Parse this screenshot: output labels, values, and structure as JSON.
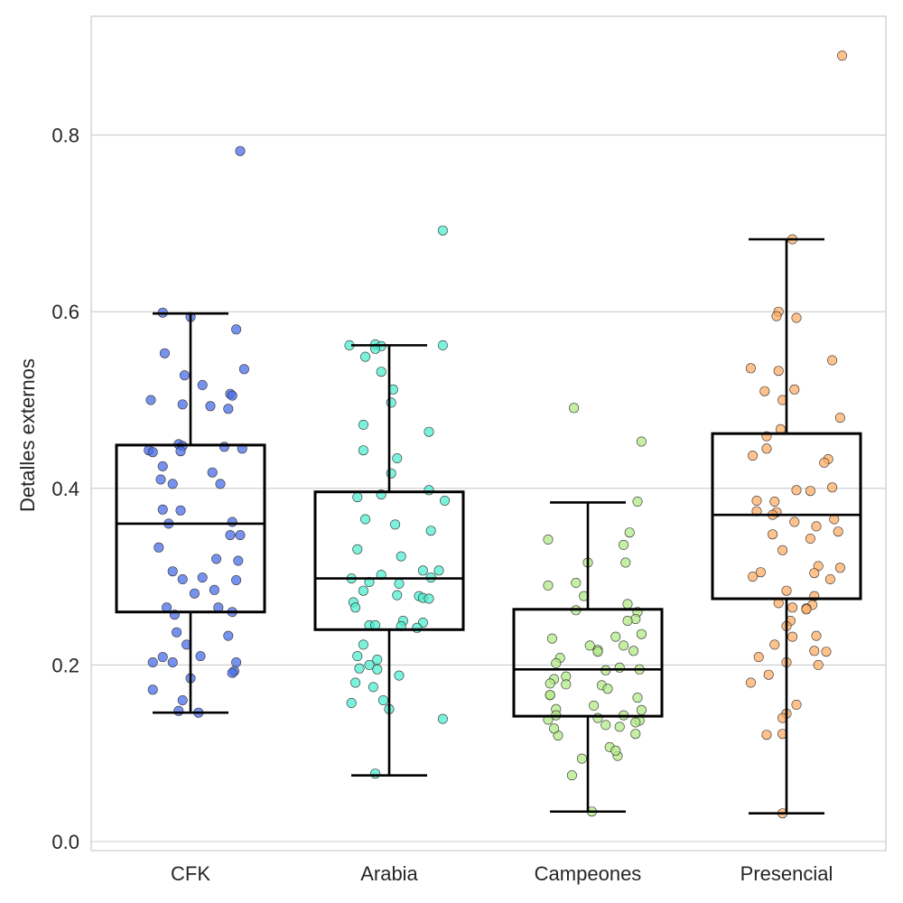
{
  "chart_data": {
    "type": "box",
    "overlay": "jittered-scatter",
    "title": "",
    "xlabel": "",
    "ylabel": "Detalles externos",
    "ylim": [
      -0.012,
      0.935
    ],
    "yticks": [
      0.0,
      0.2,
      0.4,
      0.6,
      0.8
    ],
    "ytick_labels": [
      "0.0",
      "0.2",
      "0.4",
      "0.6",
      "0.8"
    ],
    "grid": "horizontal",
    "categories": [
      "CFK",
      "Arabia",
      "Campeones",
      "Presencial"
    ],
    "colors": [
      "#4a6ee8",
      "#4dedd0",
      "#b2ea86",
      "#ffae66"
    ],
    "boxes": [
      {
        "category": "CFK",
        "whisker_low": 0.146,
        "q1": 0.26,
        "median": 0.36,
        "q3": 0.449,
        "whisker_high": 0.598
      },
      {
        "category": "Arabia",
        "whisker_low": 0.075,
        "q1": 0.24,
        "median": 0.298,
        "q3": 0.396,
        "whisker_high": 0.562
      },
      {
        "category": "Campeones",
        "whisker_low": 0.034,
        "q1": 0.142,
        "median": 0.195,
        "q3": 0.263,
        "whisker_high": 0.384
      },
      {
        "category": "Presencial",
        "whisker_low": 0.032,
        "q1": 0.275,
        "median": 0.37,
        "q3": 0.462,
        "whisker_high": 0.682
      }
    ],
    "points": [
      {
        "category": "CFK",
        "jitter": [
          0.25,
          -0.14,
          0.0,
          0.23,
          -0.13,
          0.27,
          -0.03,
          0.06,
          0.2,
          0.21,
          -0.2,
          -0.04,
          0.1,
          0.19,
          -0.06,
          -0.04,
          0.17,
          0.26,
          -0.21,
          -0.05,
          -0.19,
          -0.14,
          0.11,
          -0.15,
          -0.09,
          0.15,
          -0.14,
          -0.05,
          -0.11,
          0.21,
          0.2,
          0.25,
          -0.16,
          0.13,
          0.24,
          -0.09,
          0.06,
          -0.04,
          0.23,
          0.12,
          0.02,
          0.14,
          -0.12,
          0.21,
          -0.08,
          -0.07,
          0.19,
          -0.02,
          0.05,
          -0.14,
          0.23,
          -0.09,
          0.22,
          0.21,
          0.0,
          -0.19,
          -0.04,
          -0.06,
          0.04,
          -0.19
        ],
        "values": [
          0.782,
          0.599,
          0.594,
          0.58,
          0.553,
          0.535,
          0.528,
          0.517,
          0.507,
          0.505,
          0.5,
          0.495,
          0.493,
          0.49,
          0.45,
          0.448,
          0.447,
          0.445,
          0.443,
          0.442,
          0.441,
          0.425,
          0.418,
          0.41,
          0.405,
          0.405,
          0.376,
          0.375,
          0.36,
          0.362,
          0.347,
          0.347,
          0.333,
          0.32,
          0.318,
          0.306,
          0.299,
          0.297,
          0.296,
          0.285,
          0.281,
          0.265,
          0.265,
          0.26,
          0.257,
          0.237,
          0.233,
          0.223,
          0.21,
          0.209,
          0.203,
          0.203,
          0.193,
          0.191,
          0.185,
          0.172,
          0.16,
          0.148,
          0.146,
          0.203
        ]
      },
      {
        "category": "Arabia",
        "jitter": [
          0.27,
          -0.07,
          -0.04,
          -0.2,
          0.27,
          -0.07,
          -0.12,
          -0.04,
          0.02,
          0.01,
          -0.13,
          0.2,
          -0.13,
          0.04,
          0.01,
          0.2,
          -0.04,
          -0.16,
          0.28,
          -0.12,
          0.03,
          0.21,
          0.06,
          -0.16,
          0.25,
          0.17,
          0.21,
          -0.19,
          -0.04,
          -0.1,
          0.05,
          -0.13,
          0.04,
          0.15,
          0.17,
          0.2,
          -0.18,
          -0.17,
          0.07,
          0.17,
          -0.1,
          0.14,
          0.06,
          -0.07,
          -0.13,
          -0.16,
          -0.06,
          -0.1,
          -0.15,
          -0.06,
          0.05,
          -0.17,
          -0.08,
          -0.03,
          -0.19,
          0.0
        ],
        "values": [
          0.692,
          0.563,
          0.561,
          0.562,
          0.562,
          0.558,
          0.549,
          0.532,
          0.512,
          0.497,
          0.472,
          0.464,
          0.443,
          0.434,
          0.417,
          0.398,
          0.393,
          0.39,
          0.386,
          0.365,
          0.359,
          0.352,
          0.323,
          0.331,
          0.307,
          0.307,
          0.299,
          0.298,
          0.302,
          0.294,
          0.292,
          0.284,
          0.279,
          0.278,
          0.276,
          0.275,
          0.271,
          0.265,
          0.25,
          0.248,
          0.245,
          0.242,
          0.244,
          0.245,
          0.223,
          0.21,
          0.206,
          0.2,
          0.196,
          0.195,
          0.188,
          0.18,
          0.175,
          0.16,
          0.157,
          0.15,
          0.139,
          0.077
        ]
      },
      {
        "category": "Campeones",
        "jitter": [
          -0.07,
          0.27,
          0.25,
          -0.2,
          0.21,
          0.18,
          0.19,
          0.0,
          -0.2,
          -0.06,
          -0.02,
          0.25,
          0.24,
          0.2,
          0.27,
          -0.18,
          0.14,
          0.01,
          0.18,
          0.05,
          0.05,
          0.23,
          0.16,
          0.26,
          0.09,
          -0.11,
          -0.17,
          0.07,
          -0.11,
          0.1,
          -0.19,
          -0.16,
          0.03,
          0.27,
          0.18,
          -0.16,
          0.05,
          -0.2,
          0.26,
          0.09,
          0.24,
          0.16,
          -0.15,
          0.24,
          0.11,
          0.15,
          -0.03,
          -0.08,
          0.02,
          -0.19,
          -0.14,
          0.2,
          -0.06,
          -0.16,
          -0.19,
          -0.17,
          0.25,
          0.14
        ],
        "values": [
          0.491,
          0.453,
          0.385,
          0.342,
          0.35,
          0.336,
          0.316,
          0.316,
          0.29,
          0.293,
          0.278,
          0.26,
          0.252,
          0.25,
          0.235,
          0.23,
          0.232,
          0.222,
          0.222,
          0.217,
          0.215,
          0.216,
          0.197,
          0.195,
          0.194,
          0.187,
          0.184,
          0.177,
          0.178,
          0.173,
          0.166,
          0.15,
          0.154,
          0.149,
          0.143,
          0.143,
          0.14,
          0.138,
          0.137,
          0.132,
          0.135,
          0.13,
          0.12,
          0.122,
          0.107,
          0.097,
          0.094,
          0.075,
          0.034,
          0.166,
          0.208,
          0.269,
          0.262,
          0.202,
          0.179,
          0.128,
          0.163,
          0.103
        ]
      },
      {
        "category": "Presencial",
        "jitter": [
          0.28,
          0.03,
          -0.04,
          -0.05,
          0.05,
          0.23,
          -0.18,
          -0.04,
          -0.11,
          0.04,
          -0.02,
          0.27,
          -0.03,
          -0.1,
          -0.17,
          -0.1,
          0.21,
          0.19,
          0.23,
          0.05,
          0.12,
          -0.15,
          -0.06,
          -0.15,
          -0.05,
          -0.07,
          0.24,
          0.04,
          0.15,
          0.26,
          -0.07,
          0.12,
          -0.02,
          0.16,
          -0.13,
          0.14,
          0.22,
          -0.17,
          0.0,
          -0.04,
          0.13,
          0.03,
          0.1,
          0.1,
          0.15,
          0.03,
          0.2,
          -0.14,
          0.0,
          -0.09,
          0.0,
          -0.02,
          -0.1,
          -0.02,
          0.02,
          0.14,
          0.16,
          -0.18,
          0.05,
          0.27,
          0.14,
          0.0,
          -0.06,
          -0.02
        ],
        "values": [
          0.89,
          0.682,
          0.6,
          0.595,
          0.593,
          0.545,
          0.536,
          0.533,
          0.51,
          0.512,
          0.5,
          0.48,
          0.467,
          0.459,
          0.437,
          0.445,
          0.433,
          0.429,
          0.401,
          0.398,
          0.397,
          0.386,
          0.385,
          0.374,
          0.373,
          0.37,
          0.365,
          0.362,
          0.357,
          0.351,
          0.348,
          0.343,
          0.33,
          0.312,
          0.305,
          0.304,
          0.297,
          0.3,
          0.284,
          0.27,
          0.268,
          0.265,
          0.264,
          0.263,
          0.233,
          0.232,
          0.215,
          0.209,
          0.203,
          0.189,
          0.145,
          0.14,
          0.121,
          0.032,
          0.25,
          0.216,
          0.2,
          0.18,
          0.155,
          0.31,
          0.278,
          0.244,
          0.223,
          0.122
        ]
      }
    ]
  }
}
